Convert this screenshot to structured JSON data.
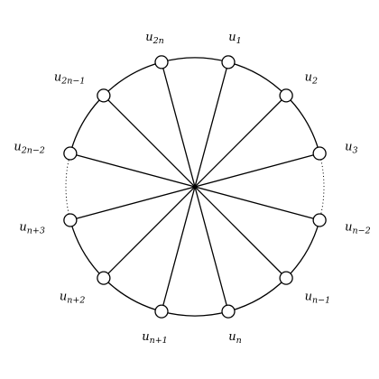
{
  "figure": {
    "colors": {
      "stroke": "#000000",
      "vertex_fill": "#ffffff",
      "background": "#ffffff"
    },
    "vertices": [
      {
        "id": "u1",
        "base": "u",
        "sub": "1"
      },
      {
        "id": "u2",
        "base": "u",
        "sub": "2"
      },
      {
        "id": "u3",
        "base": "u",
        "sub": "3"
      },
      {
        "id": "un-2",
        "base": "u",
        "sub": "n−2"
      },
      {
        "id": "un-1",
        "base": "u",
        "sub": "n−1"
      },
      {
        "id": "un",
        "base": "u",
        "sub": "n"
      },
      {
        "id": "un+1",
        "base": "u",
        "sub": "n+1"
      },
      {
        "id": "un+2",
        "base": "u",
        "sub": "n+2"
      },
      {
        "id": "un+3",
        "base": "u",
        "sub": "n+3"
      },
      {
        "id": "u2n-2",
        "base": "u",
        "sub": "2n−2"
      },
      {
        "id": "u2n-1",
        "base": "u",
        "sub": "2n−1"
      },
      {
        "id": "u2n",
        "base": "u",
        "sub": "2n"
      }
    ],
    "spokes": [
      [
        "u1",
        "un+1"
      ],
      [
        "u2",
        "un+2"
      ],
      [
        "u3",
        "un+3"
      ],
      [
        "un-2",
        "u2n-2"
      ],
      [
        "un-1",
        "u2n-1"
      ],
      [
        "un",
        "u2n"
      ]
    ],
    "dotted_gaps": [
      [
        "u3",
        "un-2"
      ],
      [
        "un+3",
        "u2n-2"
      ]
    ]
  }
}
